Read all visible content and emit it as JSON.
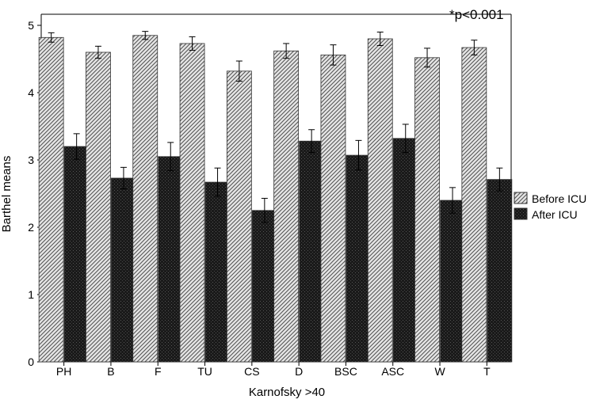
{
  "chart_data": {
    "type": "bar",
    "annotation": "*p<0.001",
    "xlabel": "Karnofsky >40",
    "ylabel": "Barthel means",
    "ylim": [
      0,
      5
    ],
    "yticks": [
      "0",
      "1",
      "2",
      "3",
      "4",
      "5"
    ],
    "categories": [
      "PH",
      "B",
      "F",
      "TU",
      "CS",
      "D",
      "BSC",
      "ASC",
      "W",
      "T"
    ],
    "series": [
      {
        "name": "Before ICU",
        "pattern": "diagonal-hatch",
        "color": "#bdbdbd",
        "values": [
          4.82,
          4.6,
          4.85,
          4.73,
          4.32,
          4.62,
          4.56,
          4.8,
          4.52,
          4.67
        ],
        "error": [
          0.07,
          0.09,
          0.06,
          0.1,
          0.15,
          0.11,
          0.15,
          0.1,
          0.14,
          0.11
        ]
      },
      {
        "name": "After ICU",
        "pattern": "dark-crosshatch",
        "color": "#1e1e1e",
        "values": [
          3.2,
          2.73,
          3.05,
          2.67,
          2.25,
          3.28,
          3.07,
          3.32,
          2.4,
          2.71
        ],
        "error": [
          0.19,
          0.16,
          0.21,
          0.21,
          0.18,
          0.17,
          0.22,
          0.21,
          0.19,
          0.17
        ]
      }
    ],
    "legend_position": "right"
  }
}
